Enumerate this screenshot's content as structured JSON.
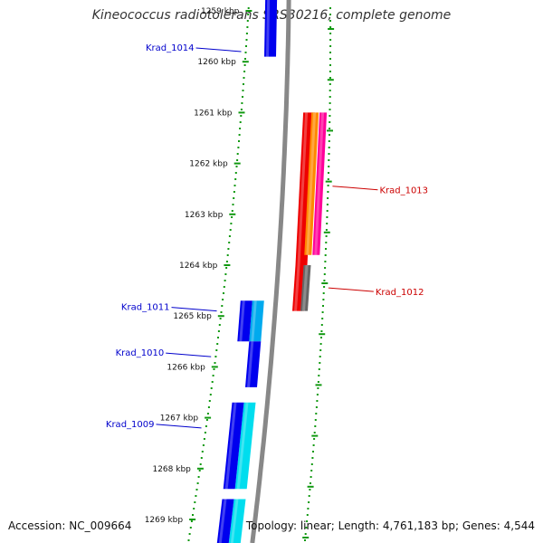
{
  "title": "Kineococcus radiotolerans SRS30216, complete genome",
  "footer": {
    "accession": "Accession: NC_009664",
    "summary": "Topology: linear; Length: 4,761,183 bp; Genes: 4,544"
  },
  "colors": {
    "track_line": "#888888",
    "dotted_guides": "#119911",
    "blue_label": "#0000cc",
    "red_label": "#cc0000"
  },
  "ticks": [
    {
      "label": "1259 kbp",
      "kbp": 1259
    },
    {
      "label": "1260 kbp",
      "kbp": 1260
    },
    {
      "label": "1261 kbp",
      "kbp": 1261
    },
    {
      "label": "1262 kbp",
      "kbp": 1262
    },
    {
      "label": "1263 kbp",
      "kbp": 1263
    },
    {
      "label": "1264 kbp",
      "kbp": 1264
    },
    {
      "label": "1265 kbp",
      "kbp": 1265
    },
    {
      "label": "1266 kbp",
      "kbp": 1266
    },
    {
      "label": "1267 kbp",
      "kbp": 1267
    },
    {
      "label": "1268 kbp",
      "kbp": 1268
    },
    {
      "label": "1269 kbp",
      "kbp": 1269
    }
  ],
  "genes": [
    {
      "strand": "minus",
      "start": 1258.6,
      "end": 1259.9,
      "color": "#0000ee"
    },
    {
      "strand": "plus",
      "start": 1261.0,
      "end": 1264.0,
      "color": "#ee0000"
    },
    {
      "strand": "plus",
      "start": 1264.0,
      "end": 1264.9,
      "color": "#ee0000"
    },
    {
      "strand": "plus",
      "start": 1261.0,
      "end": 1263.8,
      "color": "#ff8800"
    },
    {
      "strand": "plus",
      "start": 1261.0,
      "end": 1263.8,
      "color": "#ff0099"
    },
    {
      "strand": "plus",
      "start": 1264.0,
      "end": 1264.9,
      "color": "#666666"
    },
    {
      "strand": "minus",
      "start": 1264.7,
      "end": 1265.5,
      "color": "#00aaee"
    },
    {
      "strand": "minus",
      "start": 1264.7,
      "end": 1265.5,
      "color": "#0000ee"
    },
    {
      "strand": "minus",
      "start": 1265.5,
      "end": 1266.4,
      "color": "#0000ee"
    },
    {
      "strand": "minus",
      "start": 1266.7,
      "end": 1268.4,
      "color": "#00ddee"
    },
    {
      "strand": "minus",
      "start": 1266.7,
      "end": 1268.4,
      "color": "#0000ee"
    },
    {
      "strand": "minus",
      "start": 1268.6,
      "end": 1269.6,
      "color": "#00ddee"
    },
    {
      "strand": "minus",
      "start": 1268.6,
      "end": 1269.6,
      "color": "#0000ee"
    }
  ],
  "labels": [
    {
      "text": "Krad_1014",
      "side": "left",
      "kbp": 1259.8,
      "color": "#0000cc"
    },
    {
      "text": "Krad_1013",
      "side": "right",
      "kbp": 1262.5,
      "color": "#cc0000"
    },
    {
      "text": "Krad_1012",
      "side": "right",
      "kbp": 1264.5,
      "color": "#cc0000"
    },
    {
      "text": "Krad_1011",
      "side": "left",
      "kbp": 1264.9,
      "color": "#0000cc"
    },
    {
      "text": "Krad_1010",
      "side": "left",
      "kbp": 1265.8,
      "color": "#0000cc"
    },
    {
      "text": "Krad_1009",
      "side": "left",
      "kbp": 1267.2,
      "color": "#0000cc"
    }
  ]
}
